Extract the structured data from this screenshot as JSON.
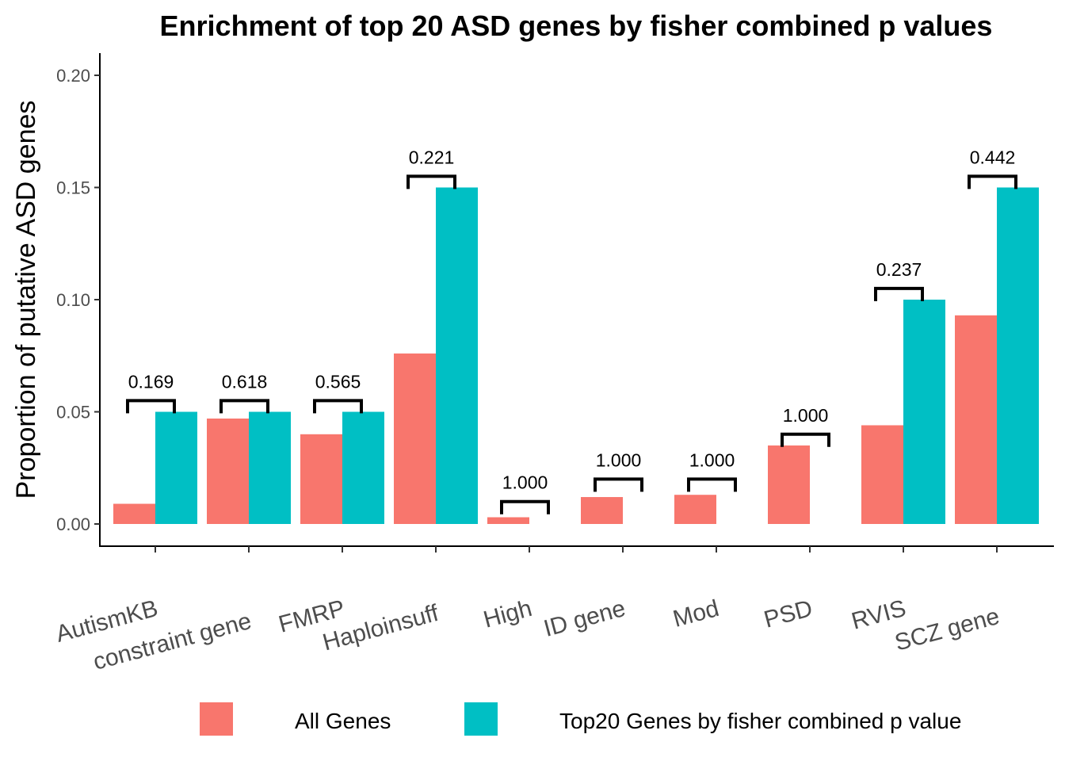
{
  "chart_data": {
    "type": "bar",
    "title": "Enrichment of top 20 ASD genes by fisher combined p values",
    "xlabel": "",
    "ylabel": "Proportion of putative ASD genes",
    "ylim": [
      0,
      0.21
    ],
    "yticks": [
      "0.00",
      "0.05",
      "0.10",
      "0.15",
      "0.20"
    ],
    "ytick_values": [
      0,
      0.05,
      0.1,
      0.15,
      0.2
    ],
    "grid": false,
    "legend_position": "bottom",
    "categories": [
      "AutismKB",
      "constraint gene",
      "FMRP",
      "Haploinsuff",
      "High",
      "ID gene",
      "Mod",
      "PSD",
      "RVIS",
      "SCZ gene"
    ],
    "series": [
      {
        "name": "All Genes",
        "color": "#F8766D",
        "values": [
          0.009,
          0.047,
          0.04,
          0.076,
          0.003,
          0.012,
          0.013,
          0.035,
          0.044,
          0.093
        ]
      },
      {
        "name": "Top20 Genes by fisher combined p value",
        "color": "#00BFC4",
        "values": [
          0.05,
          0.05,
          0.05,
          0.15,
          0,
          0,
          0,
          0,
          0.1,
          0.15
        ]
      }
    ],
    "annotations": {
      "pvalues": [
        "0.169",
        "0.618",
        "0.565",
        "0.221",
        "1.000",
        "1.000",
        "1.000",
        "1.000",
        "0.237",
        "0.442"
      ],
      "bracket_values": [
        0.055,
        0.055,
        0.055,
        0.155,
        0.01,
        0.02,
        0.02,
        0.04,
        0.105,
        0.155
      ]
    }
  }
}
